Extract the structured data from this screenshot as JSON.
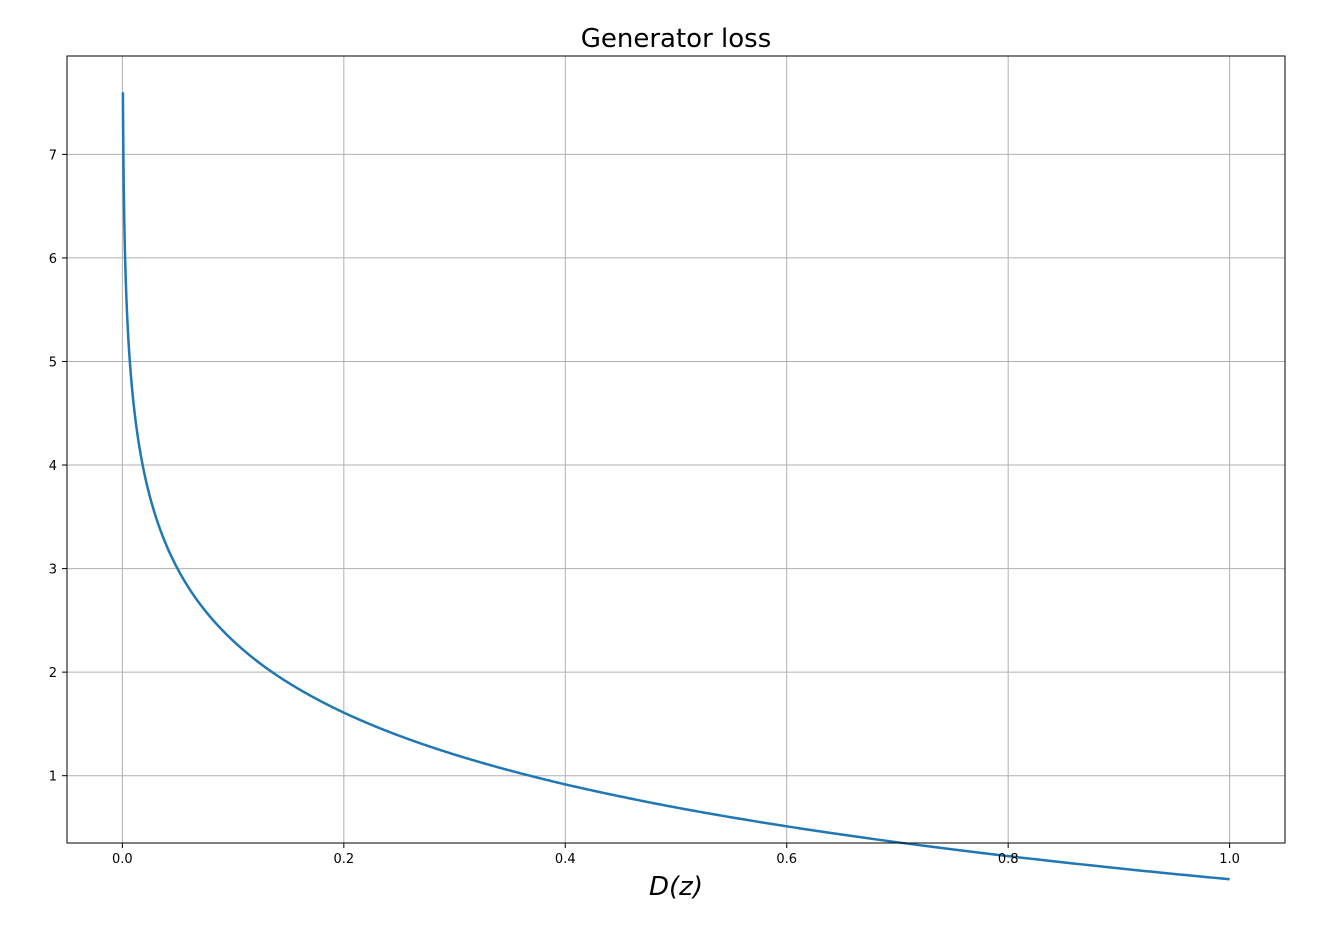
{
  "chart_data": {
    "type": "line",
    "title": "Generator loss",
    "xlabel": "D(z)",
    "ylabel": "",
    "xlim": [
      -0.05,
      1.05
    ],
    "ylim": [
      0.35,
      7.95
    ],
    "grid": true,
    "xticks": [
      0.0,
      0.2,
      0.4,
      0.6,
      0.8,
      1.0
    ],
    "xtick_labels": [
      "0.0",
      "0.2",
      "0.4",
      "0.6",
      "0.8",
      "1.0"
    ],
    "yticks": [
      1,
      2,
      3,
      4,
      5,
      6,
      7
    ],
    "ytick_labels": [
      "1",
      "2",
      "3",
      "4",
      "5",
      "6",
      "7"
    ],
    "series": [
      {
        "color": "#1f77b4",
        "x": [
          0.0005,
          0.001,
          0.002,
          0.003,
          0.005,
          0.0075,
          0.01,
          0.015,
          0.02,
          0.03,
          0.04,
          0.05,
          0.065,
          0.08,
          0.1,
          0.125,
          0.15,
          0.175,
          0.2,
          0.25,
          0.3,
          0.35,
          0.4,
          0.45,
          0.5,
          0.55,
          0.6,
          0.65,
          0.7,
          0.75,
          0.8,
          0.85,
          0.9,
          0.95,
          1.0
        ],
        "y": [
          7.6,
          6.908,
          6.215,
          5.809,
          5.298,
          4.893,
          4.605,
          4.2,
          3.912,
          3.507,
          3.219,
          2.996,
          2.733,
          2.526,
          2.303,
          2.079,
          1.897,
          1.743,
          1.609,
          1.386,
          1.204,
          1.05,
          0.916,
          0.799,
          0.693,
          0.598,
          0.511,
          0.431,
          0.357,
          0.288,
          0.223,
          0.163,
          0.105,
          0.051,
          0.0
        ]
      }
    ]
  }
}
